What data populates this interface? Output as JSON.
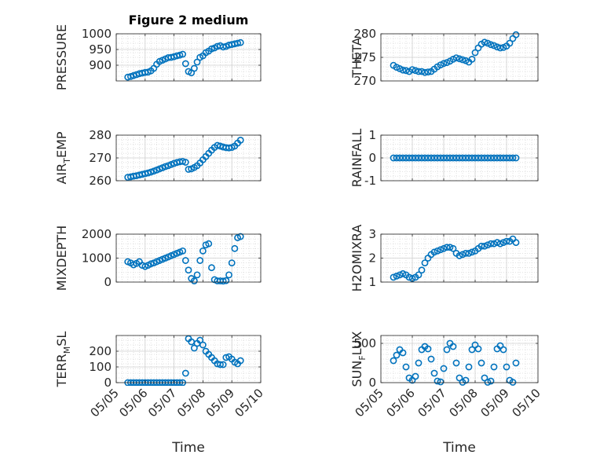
{
  "figure": {
    "title": "Figure 2 medium",
    "xlabel": "Time"
  },
  "style": {
    "marker_color": "#0072BD",
    "axis_color": "#262626",
    "grid_color": "#d9d9d9",
    "background": "#ffffff"
  },
  "chart_data": [
    {
      "type": "scatter",
      "title": "Figure 2 medium",
      "ylabel": "PRESSURE",
      "ylim": [
        850,
        1000
      ],
      "yticks": [
        900,
        950,
        1000
      ],
      "xticks": [
        "05/05",
        "05/06",
        "05/07",
        "05/08",
        "05/09",
        "05/10"
      ],
      "grid": true,
      "minor_grid": true,
      "series": [
        {
          "x": [
            0.4,
            0.5,
            0.6,
            0.7,
            0.8,
            0.9,
            1.0,
            1.1,
            1.2,
            1.3,
            1.4,
            1.5,
            1.6,
            1.7,
            1.8,
            1.9,
            2.0,
            2.1,
            2.2,
            2.3,
            2.4,
            2.5,
            2.6,
            2.7,
            2.8,
            2.9,
            3.0,
            3.1,
            3.2,
            3.3,
            3.4,
            3.5,
            3.6,
            3.7,
            3.8,
            3.9,
            4.0,
            4.1,
            4.2,
            4.3
          ],
          "y": [
            862,
            864,
            867,
            870,
            873,
            875,
            877,
            878,
            882,
            890,
            903,
            912,
            916,
            920,
            924,
            925,
            927,
            930,
            932,
            935,
            905,
            880,
            876,
            890,
            910,
            925,
            930,
            940,
            945,
            952,
            955,
            960,
            962,
            958,
            960,
            964,
            966,
            968,
            970,
            972
          ]
        }
      ]
    },
    {
      "type": "scatter",
      "ylabel": "THETA",
      "ylim": [
        270,
        280
      ],
      "yticks": [
        270,
        275,
        280
      ],
      "xticks": [
        "05/05",
        "05/06",
        "05/07",
        "05/08",
        "05/09",
        "05/10"
      ],
      "grid": true,
      "minor_grid": true,
      "series": [
        {
          "x": [
            0.4,
            0.5,
            0.6,
            0.7,
            0.8,
            0.9,
            1.0,
            1.1,
            1.2,
            1.3,
            1.4,
            1.5,
            1.6,
            1.7,
            1.8,
            1.9,
            2.0,
            2.1,
            2.2,
            2.3,
            2.4,
            2.5,
            2.6,
            2.7,
            2.8,
            2.9,
            3.0,
            3.1,
            3.2,
            3.3,
            3.4,
            3.5,
            3.6,
            3.7,
            3.8,
            3.9,
            4.0,
            4.1,
            4.2,
            4.3
          ],
          "y": [
            273.3,
            272.9,
            272.6,
            272.3,
            272.2,
            272.0,
            272.4,
            272.2,
            272.0,
            272.0,
            271.8,
            271.9,
            272.0,
            272.5,
            273.0,
            273.4,
            273.7,
            273.9,
            274.2,
            274.6,
            274.9,
            274.7,
            274.5,
            274.3,
            274.0,
            274.6,
            276.0,
            277.0,
            277.8,
            278.2,
            278.0,
            277.7,
            277.5,
            277.2,
            277.0,
            277.1,
            277.4,
            278.0,
            279.0,
            279.8
          ]
        }
      ]
    },
    {
      "type": "scatter",
      "ylabel": "AIR",
      "ylabel_sub": "T",
      "ylabel_rest": "EMP",
      "ylim": [
        260,
        280
      ],
      "yticks": [
        260,
        270,
        280
      ],
      "xticks": [
        "05/05",
        "05/06",
        "05/07",
        "05/08",
        "05/09",
        "05/10"
      ],
      "grid": true,
      "minor_grid": true,
      "series": [
        {
          "x": [
            0.4,
            0.5,
            0.6,
            0.7,
            0.8,
            0.9,
            1.0,
            1.1,
            1.2,
            1.3,
            1.4,
            1.5,
            1.6,
            1.7,
            1.8,
            1.9,
            2.0,
            2.1,
            2.2,
            2.3,
            2.4,
            2.5,
            2.6,
            2.7,
            2.8,
            2.9,
            3.0,
            3.1,
            3.2,
            3.3,
            3.4,
            3.5,
            3.6,
            3.7,
            3.8,
            3.9,
            4.0,
            4.1,
            4.2,
            4.3
          ],
          "y": [
            261.5,
            261.7,
            262.0,
            262.2,
            262.5,
            262.8,
            263.1,
            263.4,
            263.8,
            264.2,
            264.7,
            265.2,
            265.7,
            266.2,
            266.6,
            267.1,
            267.6,
            268.0,
            268.3,
            268.5,
            268.1,
            265.0,
            265.2,
            265.8,
            266.6,
            267.8,
            269.2,
            270.6,
            272.0,
            273.4,
            274.6,
            275.5,
            275.2,
            274.8,
            274.5,
            274.4,
            274.6,
            275.2,
            276.5,
            277.8
          ]
        }
      ]
    },
    {
      "type": "scatter",
      "ylabel": "RAINFALL",
      "ylim": [
        -1,
        1
      ],
      "yticks": [
        -1,
        0,
        1
      ],
      "xticks": [
        "05/05",
        "05/06",
        "05/07",
        "05/08",
        "05/09",
        "05/10"
      ],
      "grid": true,
      "minor_grid": true,
      "series": [
        {
          "x": [
            0.4,
            0.5,
            0.6,
            0.7,
            0.8,
            0.9,
            1.0,
            1.1,
            1.2,
            1.3,
            1.4,
            1.5,
            1.6,
            1.7,
            1.8,
            1.9,
            2.0,
            2.1,
            2.2,
            2.3,
            2.4,
            2.5,
            2.6,
            2.7,
            2.8,
            2.9,
            3.0,
            3.1,
            3.2,
            3.3,
            3.4,
            3.5,
            3.6,
            3.7,
            3.8,
            3.9,
            4.0,
            4.1,
            4.2,
            4.3
          ],
          "y": [
            0,
            0,
            0,
            0,
            0,
            0,
            0,
            0,
            0,
            0,
            0,
            0,
            0,
            0,
            0,
            0,
            0,
            0,
            0,
            0,
            0,
            0,
            0,
            0,
            0,
            0,
            0,
            0,
            0,
            0,
            0,
            0,
            0,
            0,
            0,
            0,
            0,
            0,
            0,
            0
          ]
        }
      ]
    },
    {
      "type": "scatter",
      "ylabel": "MIXDEPTH",
      "ylim": [
        0,
        2000
      ],
      "yticks": [
        0,
        1000,
        2000
      ],
      "xticks": [
        "05/05",
        "05/06",
        "05/07",
        "05/08",
        "05/09",
        "05/10"
      ],
      "grid": true,
      "minor_grid": true,
      "series": [
        {
          "x": [
            0.4,
            0.5,
            0.6,
            0.7,
            0.8,
            0.9,
            1.0,
            1.1,
            1.2,
            1.3,
            1.4,
            1.5,
            1.6,
            1.7,
            1.8,
            1.9,
            2.0,
            2.1,
            2.2,
            2.3,
            2.4,
            2.5,
            2.6,
            2.7,
            2.8,
            2.9,
            3.0,
            3.1,
            3.2,
            3.3,
            3.4,
            3.5,
            3.6,
            3.7,
            3.8,
            3.9,
            4.0,
            4.1,
            4.2,
            4.3
          ],
          "y": [
            850,
            800,
            720,
            780,
            850,
            700,
            650,
            700,
            760,
            800,
            850,
            900,
            950,
            1000,
            1050,
            1100,
            1150,
            1200,
            1250,
            1300,
            900,
            500,
            150,
            50,
            300,
            900,
            1300,
            1550,
            1600,
            600,
            100,
            50,
            50,
            40,
            60,
            300,
            800,
            1400,
            1850,
            1900
          ]
        }
      ]
    },
    {
      "type": "scatter",
      "ylabel": "H2OMIXRA",
      "ylim": [
        1,
        3
      ],
      "yticks": [
        1,
        2,
        3
      ],
      "xticks": [
        "05/05",
        "05/06",
        "05/07",
        "05/08",
        "05/09",
        "05/10"
      ],
      "grid": true,
      "minor_grid": true,
      "series": [
        {
          "x": [
            0.4,
            0.5,
            0.6,
            0.7,
            0.8,
            0.9,
            1.0,
            1.1,
            1.2,
            1.3,
            1.4,
            1.5,
            1.6,
            1.7,
            1.8,
            1.9,
            2.0,
            2.1,
            2.2,
            2.3,
            2.4,
            2.5,
            2.6,
            2.7,
            2.8,
            2.9,
            3.0,
            3.1,
            3.2,
            3.3,
            3.4,
            3.5,
            3.6,
            3.7,
            3.8,
            3.9,
            4.0,
            4.1,
            4.2,
            4.3
          ],
          "y": [
            1.2,
            1.25,
            1.3,
            1.35,
            1.3,
            1.2,
            1.15,
            1.2,
            1.3,
            1.5,
            1.8,
            2.0,
            2.15,
            2.25,
            2.3,
            2.35,
            2.4,
            2.45,
            2.45,
            2.4,
            2.2,
            2.1,
            2.15,
            2.2,
            2.2,
            2.25,
            2.3,
            2.4,
            2.5,
            2.5,
            2.55,
            2.6,
            2.6,
            2.65,
            2.6,
            2.65,
            2.7,
            2.7,
            2.8,
            2.65
          ]
        }
      ]
    },
    {
      "type": "scatter",
      "ylabel": "TERR",
      "ylabel_sub": "M",
      "ylabel_rest": "SL",
      "ylim": [
        0,
        300
      ],
      "yticks": [
        0,
        100,
        200
      ],
      "xticks": [
        "05/05",
        "05/06",
        "05/07",
        "05/08",
        "05/09",
        "05/10"
      ],
      "grid": true,
      "minor_grid": true,
      "series": [
        {
          "x": [
            0.4,
            0.5,
            0.6,
            0.7,
            0.8,
            0.9,
            1.0,
            1.1,
            1.2,
            1.3,
            1.4,
            1.5,
            1.6,
            1.7,
            1.8,
            1.9,
            2.0,
            2.1,
            2.2,
            2.3,
            2.4,
            2.5,
            2.6,
            2.7,
            2.8,
            2.9,
            3.0,
            3.1,
            3.2,
            3.3,
            3.4,
            3.5,
            3.6,
            3.7,
            3.8,
            3.9,
            4.0,
            4.1,
            4.2,
            4.3
          ],
          "y": [
            0,
            0,
            0,
            0,
            0,
            0,
            0,
            0,
            0,
            0,
            0,
            0,
            0,
            0,
            0,
            0,
            0,
            0,
            0,
            0,
            60,
            280,
            260,
            220,
            250,
            270,
            240,
            200,
            180,
            160,
            140,
            120,
            115,
            115,
            160,
            165,
            150,
            130,
            120,
            140
          ]
        }
      ]
    },
    {
      "type": "scatter",
      "ylabel": "SUN",
      "ylabel_sub": "F",
      "ylabel_rest": "LUX",
      "ylim": [
        0,
        600
      ],
      "yticks": [
        0,
        500
      ],
      "xticks": [
        "05/05",
        "05/06",
        "05/07",
        "05/08",
        "05/09",
        "05/10"
      ],
      "grid": true,
      "minor_grid": true,
      "series": [
        {
          "x": [
            0.4,
            0.5,
            0.6,
            0.7,
            0.8,
            0.9,
            1.0,
            1.1,
            1.2,
            1.3,
            1.4,
            1.5,
            1.6,
            1.7,
            1.8,
            1.9,
            2.0,
            2.1,
            2.2,
            2.3,
            2.4,
            2.5,
            2.6,
            2.7,
            2.8,
            2.9,
            3.0,
            3.1,
            3.2,
            3.3,
            3.4,
            3.5,
            3.6,
            3.7,
            3.8,
            3.9,
            4.0,
            4.1,
            4.2,
            4.3
          ],
          "y": [
            280,
            350,
            420,
            380,
            200,
            60,
            30,
            80,
            250,
            420,
            460,
            430,
            300,
            120,
            20,
            10,
            180,
            420,
            500,
            460,
            250,
            60,
            5,
            30,
            200,
            420,
            480,
            430,
            250,
            60,
            5,
            20,
            200,
            430,
            470,
            420,
            200,
            30,
            5,
            250
          ]
        }
      ]
    }
  ]
}
